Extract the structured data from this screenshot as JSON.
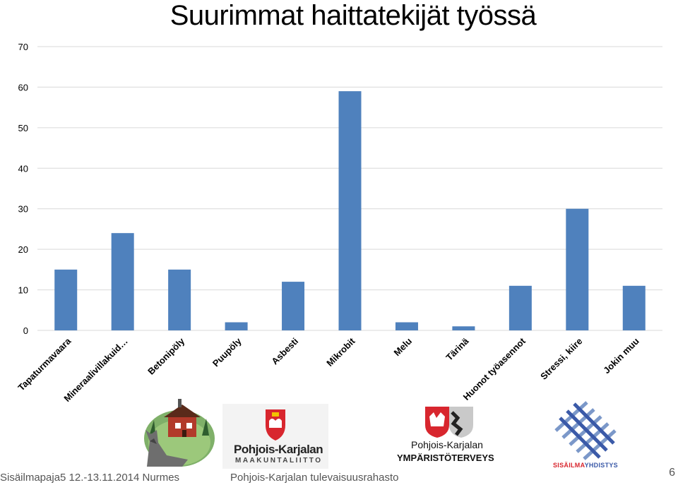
{
  "chart_data": {
    "type": "bar",
    "title": "Suurimmat haittatekijät työssä",
    "categories": [
      "Tapaturmavaara",
      "Mineraalivillakuid…",
      "Betonipöly",
      "Puupöly",
      "Asbesti",
      "Mikrobit",
      "Melu",
      "Tärinä",
      "Huonot työasennot",
      "Stressi, kiire",
      "Jokin muu"
    ],
    "values": [
      15,
      24,
      15,
      2,
      12,
      59,
      2,
      1,
      11,
      30,
      11
    ],
    "ylim": [
      0,
      70
    ],
    "yticks": [
      0,
      10,
      20,
      30,
      40,
      50,
      60,
      70
    ],
    "grid": true,
    "bar_color": "#4f81bd",
    "grid_color": "#d9d9d9"
  },
  "logos": {
    "maakuntaliitto_name": "Pohjois-Karjalan",
    "maakuntaliitto_sub": "MAAKUNTALIITTO",
    "ymparisto_name": "Pohjois-Karjalan",
    "ymparisto_sub": "YMPÄRISTÖTERVEYS",
    "sisailma_name_red": "SISÄILMA",
    "sisailma_name_blue": "YHDISTYS"
  },
  "footer": {
    "left": "Sisäilmapaja5 12.-13.11.2014 Nurmes",
    "center": "Pohjois-Karjalan tulevaisuusrahasto",
    "page": "6"
  }
}
